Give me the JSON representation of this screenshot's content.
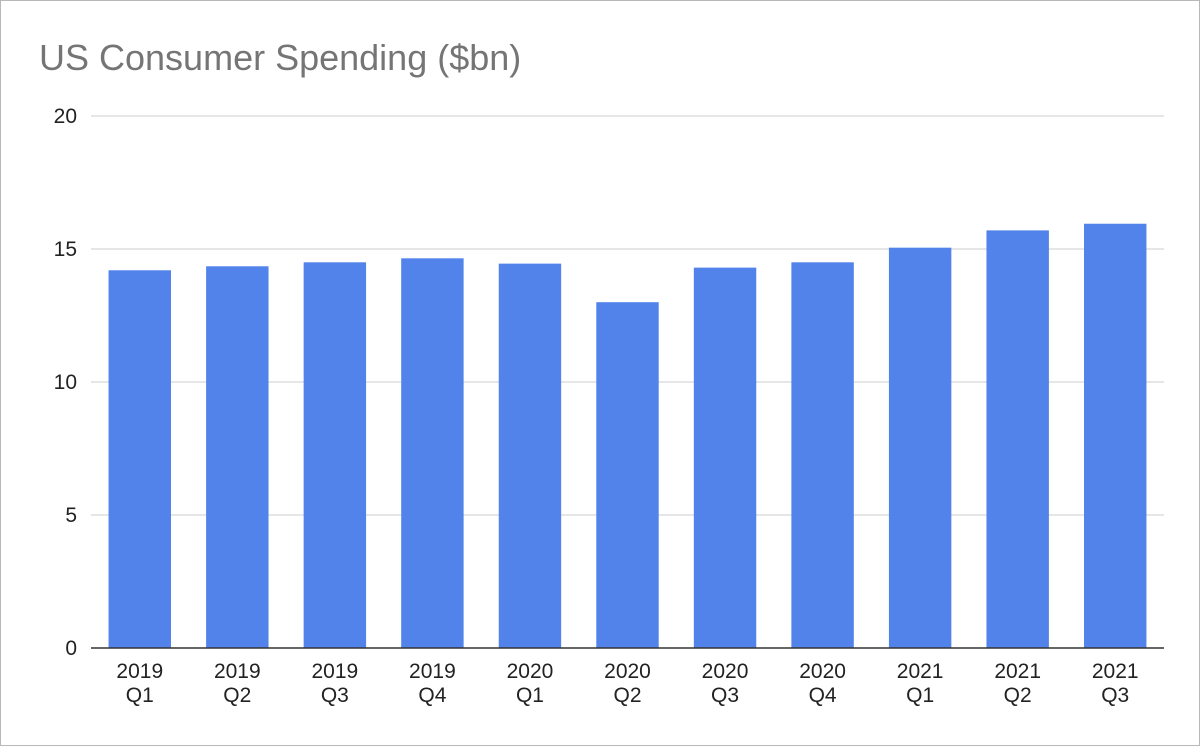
{
  "chart_data": {
    "type": "bar",
    "title": "US Consumer Spending ($bn)",
    "categories": [
      [
        "2019",
        "Q1"
      ],
      [
        "2019",
        "Q2"
      ],
      [
        "2019",
        "Q3"
      ],
      [
        "2019",
        "Q4"
      ],
      [
        "2020",
        "Q1"
      ],
      [
        "2020",
        "Q2"
      ],
      [
        "2020",
        "Q3"
      ],
      [
        "2020",
        "Q4"
      ],
      [
        "2021",
        "Q1"
      ],
      [
        "2021",
        "Q2"
      ],
      [
        "2021",
        "Q3"
      ]
    ],
    "values": [
      14.2,
      14.35,
      14.5,
      14.65,
      14.45,
      13.0,
      14.3,
      14.5,
      15.05,
      15.7,
      15.95
    ],
    "ylim": [
      0,
      20
    ],
    "yticks": [
      0,
      5,
      10,
      15,
      20
    ],
    "xlabel": "",
    "ylabel": "",
    "grid": true,
    "legend": "none",
    "colors": {
      "bar": "#5283EA",
      "grid": "#cccccc",
      "axis": "#333333",
      "title": "#757575"
    }
  }
}
